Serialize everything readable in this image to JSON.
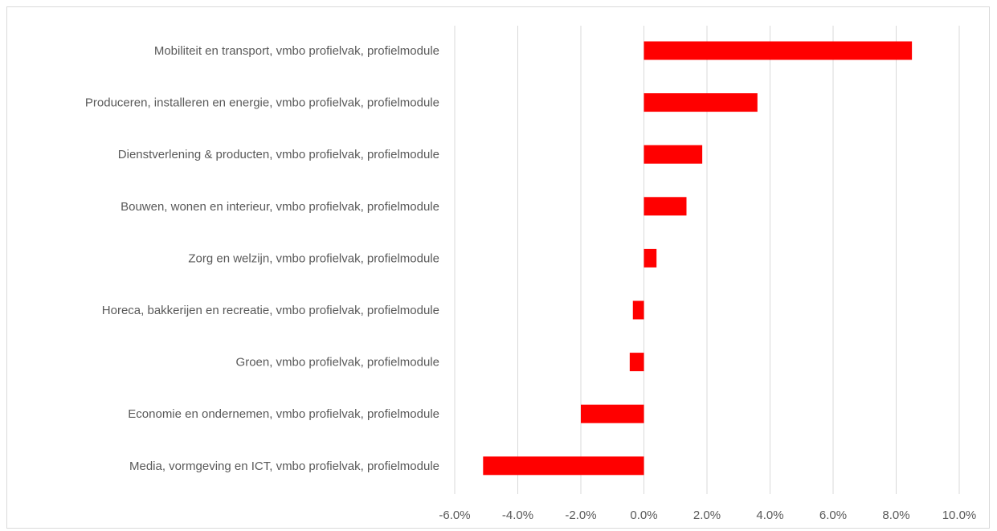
{
  "chart_data": {
    "type": "bar",
    "orientation": "horizontal",
    "title": "",
    "xlabel": "",
    "ylabel": "",
    "categories": [
      "Mobiliteit en transport, vmbo profielvak, profielmodule",
      "Produceren, installeren en energie, vmbo profielvak, profielmodule",
      "Dienstverlening & producten, vmbo profielvak, profielmodule",
      "Bouwen, wonen en interieur, vmbo profielvak, profielmodule",
      "Zorg en welzijn, vmbo profielvak, profielmodule",
      "Horeca, bakkerijen en recreatie, vmbo profielvak, profielmodule",
      "Groen, vmbo profielvak, profielmodule",
      "Economie en ondernemen, vmbo profielvak, profielmodule",
      "Media, vormgeving en ICT, vmbo profielvak, profielmodule"
    ],
    "values": [
      8.5,
      3.6,
      1.85,
      1.35,
      0.4,
      -0.35,
      -0.45,
      -2.0,
      -5.1
    ],
    "xlim": [
      -6,
      10
    ],
    "xticks": [
      -6,
      -4,
      -2,
      0,
      2,
      4,
      6,
      8,
      10
    ],
    "xtick_labels": [
      "-6.0%",
      "-4.0%",
      "-2.0%",
      "0.0%",
      "2.0%",
      "4.0%",
      "6.0%",
      "8.0%",
      "10.0%"
    ],
    "grid": true,
    "legend": "none",
    "bar_color": "#ff0000",
    "grid_color": "#d9d9d9",
    "text_color": "#595959"
  }
}
